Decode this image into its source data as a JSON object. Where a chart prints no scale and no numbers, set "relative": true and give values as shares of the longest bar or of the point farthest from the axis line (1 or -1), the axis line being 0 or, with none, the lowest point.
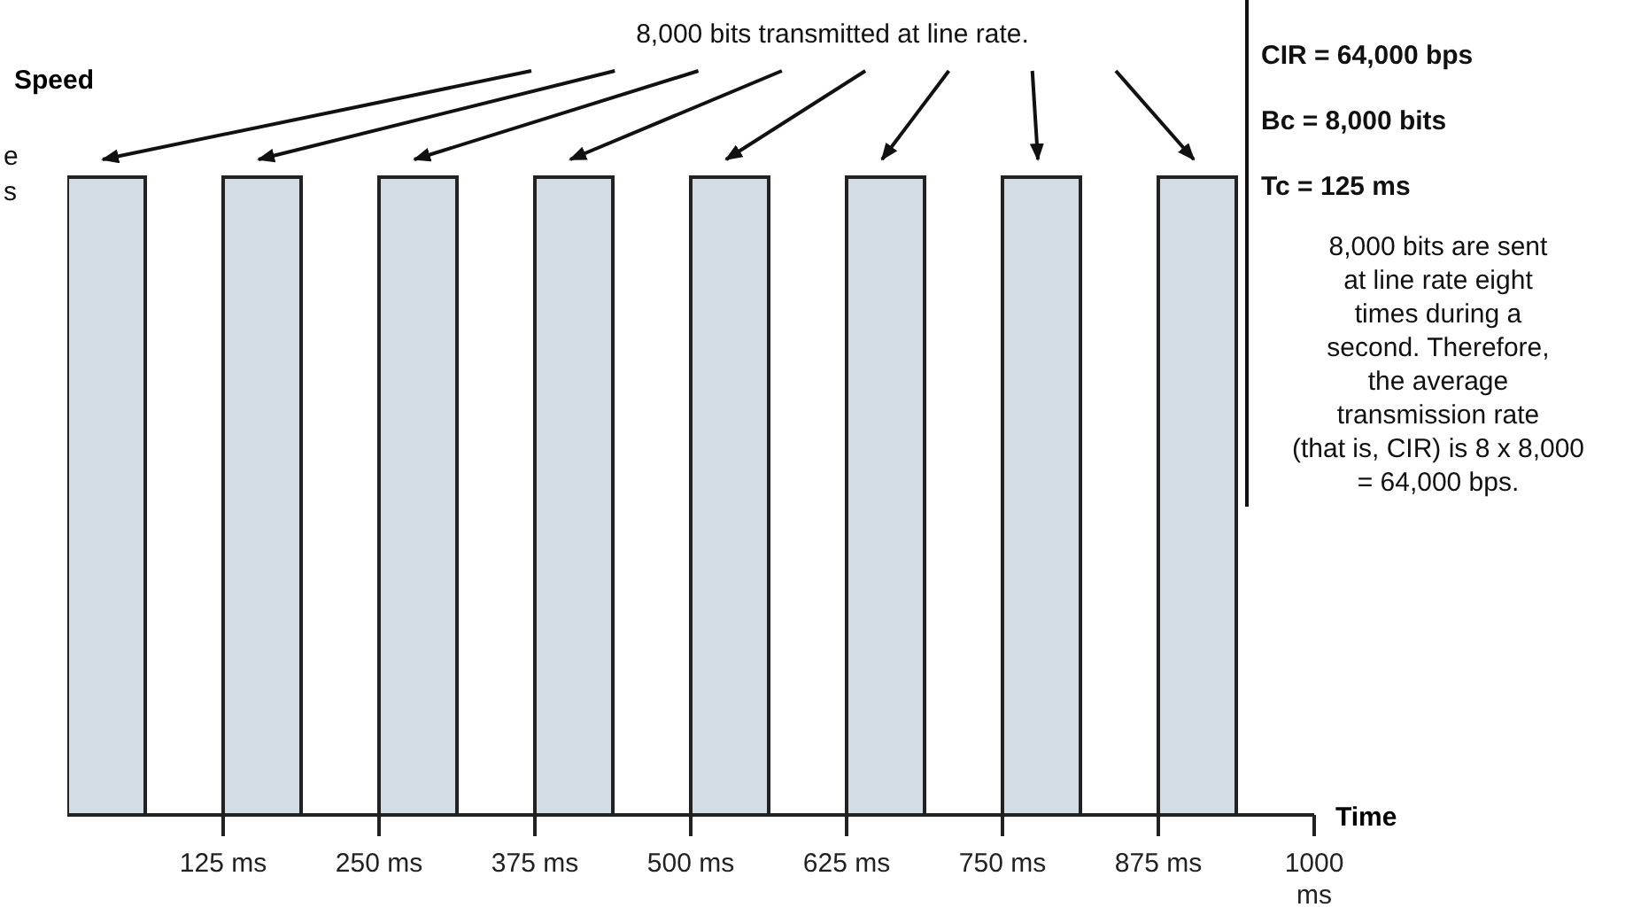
{
  "chart_data": {
    "type": "bar",
    "relative": true,
    "ylabel": "Speed",
    "xlabel": "Time",
    "x": [
      31.25,
      156.25,
      281.25,
      406.25,
      531.25,
      656.25,
      781.25,
      906.25
    ],
    "values": [
      1,
      1,
      1,
      1,
      1,
      1,
      1,
      1
    ],
    "color": "#d3dde6",
    "xlim": [
      0,
      1000
    ],
    "xticks": [
      {
        "value": 125,
        "label": "125 ms"
      },
      {
        "value": 250,
        "label": "250 ms"
      },
      {
        "value": 375,
        "label": "375 ms"
      },
      {
        "value": 500,
        "label": "500 ms"
      },
      {
        "value": 625,
        "label": "625 ms"
      },
      {
        "value": 750,
        "label": "750 ms"
      },
      {
        "value": 875,
        "label": "875 ms"
      },
      {
        "value": 1000,
        "label": "1000 ms"
      }
    ],
    "annotations": [
      "8,000 bits transmitted at line rate.",
      "e\ns",
      "CIR = 64,000 bps",
      "Bc = 8,000 bits",
      "Tc = 125 ms",
      "8,000 bits are sent\nat line rate eight\ntimes during a\nsecond. Therefore,\nthe average\ntransmission rate\n(that is, CIR) is 8 x 8,000\n= 64,000 bps."
    ]
  }
}
